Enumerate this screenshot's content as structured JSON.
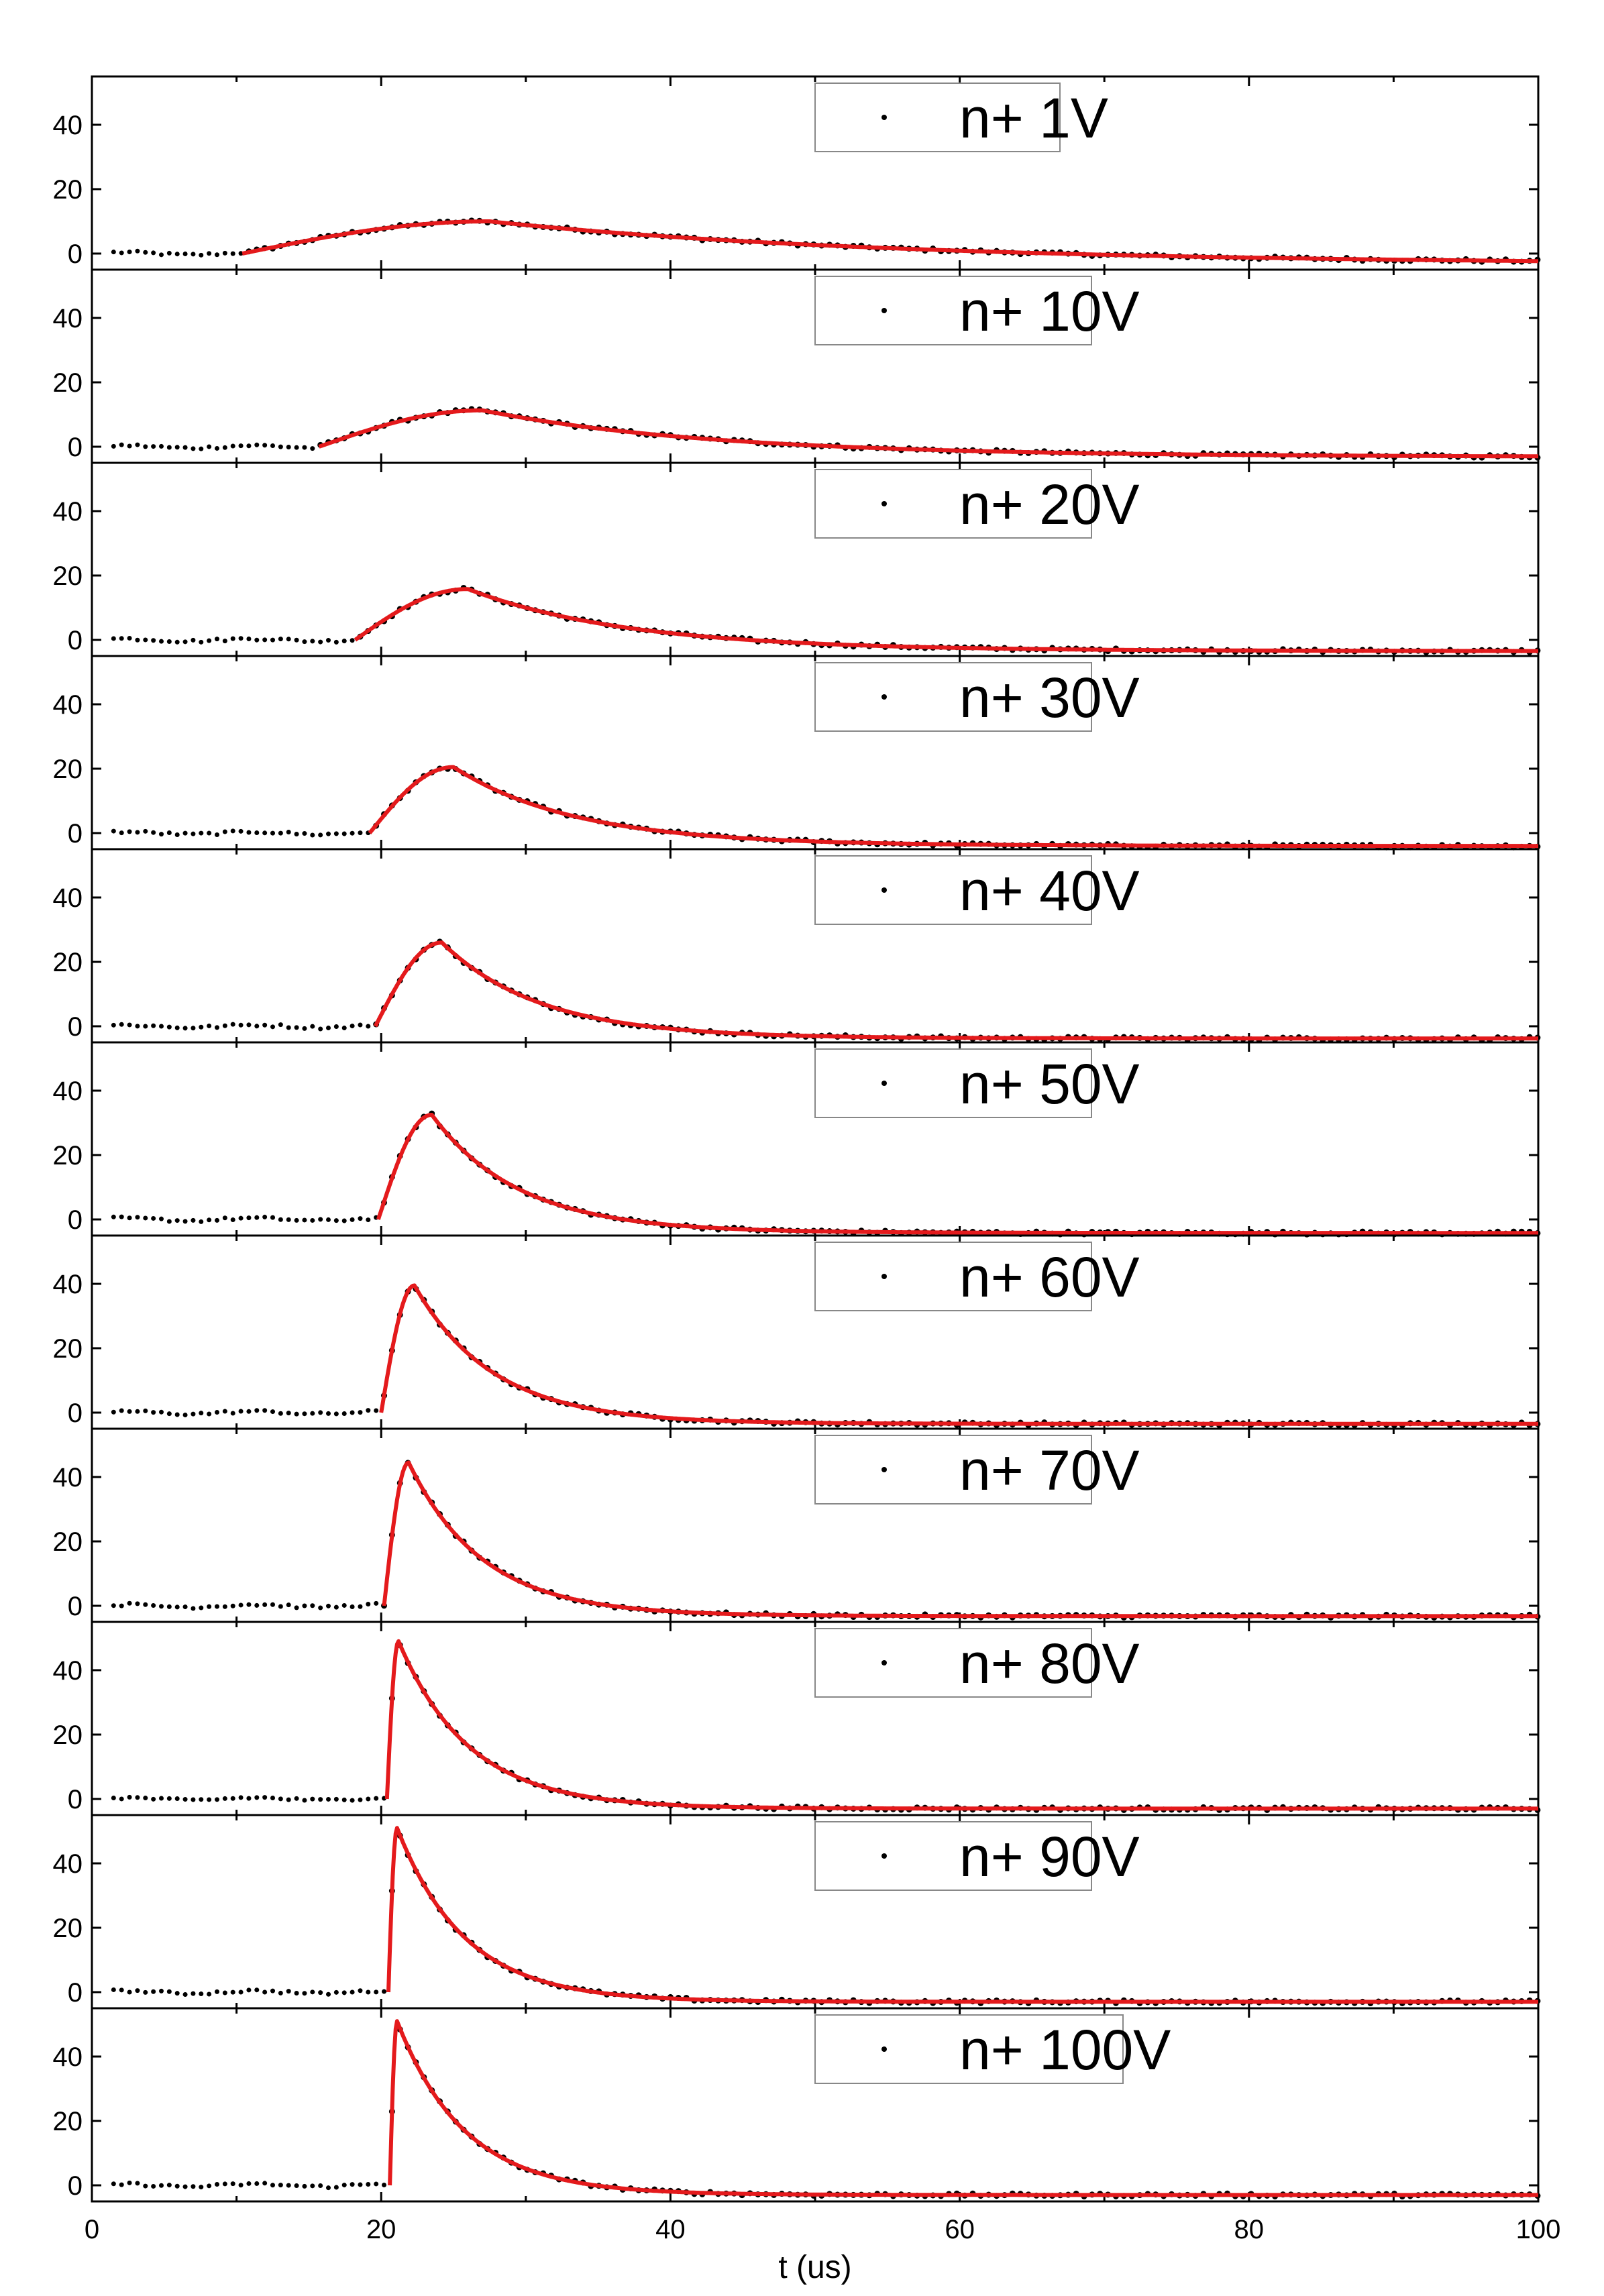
{
  "chart_data": {
    "type": "line",
    "layout": "stacked-panels",
    "xlabel": "t (us)",
    "xlim": [
      0,
      100
    ],
    "xticks": [
      0,
      20,
      40,
      60,
      80,
      100
    ],
    "ylim": [
      -5,
      55
    ],
    "yticks": [
      0,
      20,
      40
    ],
    "legend_position": "top-center",
    "colors": {
      "data": "#000000",
      "fit": "#e41a1c"
    },
    "panels": [
      {
        "label": "n+ 1V",
        "onset": 10.4,
        "peak_time": 27.5,
        "peak": 10.0,
        "decay": 26.0,
        "undershoot": -3.5
      },
      {
        "label": "n+ 10V",
        "onset": 15.7,
        "peak_time": 27.0,
        "peak": 11.3,
        "decay": 15.0,
        "undershoot": -3.2
      },
      {
        "label": "n+ 20V",
        "onset": 18.2,
        "peak_time": 26.0,
        "peak": 15.8,
        "decay": 10.5,
        "undershoot": -3.5
      },
      {
        "label": "n+ 30V",
        "onset": 19.2,
        "peak_time": 25.0,
        "peak": 20.5,
        "decay": 8.0,
        "undershoot": -4.0
      },
      {
        "label": "n+ 40V",
        "onset": 19.6,
        "peak_time": 24.2,
        "peak": 26.0,
        "decay": 6.5,
        "undershoot": -3.8
      },
      {
        "label": "n+ 50V",
        "onset": 19.8,
        "peak_time": 23.5,
        "peak": 32.5,
        "decay": 5.8,
        "undershoot": -4.2
      },
      {
        "label": "n+ 60V",
        "onset": 20.0,
        "peak_time": 22.3,
        "peak": 39.5,
        "decay": 5.3,
        "undershoot": -3.5
      },
      {
        "label": "n+ 70V",
        "onset": 20.2,
        "peak_time": 21.9,
        "peak": 44.5,
        "decay": 5.0,
        "undershoot": -3.2
      },
      {
        "label": "n+ 80V",
        "onset": 20.4,
        "peak_time": 21.2,
        "peak": 49.0,
        "decay": 4.8,
        "undershoot": -3.0
      },
      {
        "label": "n+ 90V",
        "onset": 20.5,
        "peak_time": 21.1,
        "peak": 51.0,
        "decay": 4.6,
        "undershoot": -3.0
      },
      {
        "label": "n+ 100V",
        "onset": 20.6,
        "peak_time": 21.1,
        "peak": 51.0,
        "decay": 4.6,
        "undershoot": -3.0
      }
    ]
  }
}
